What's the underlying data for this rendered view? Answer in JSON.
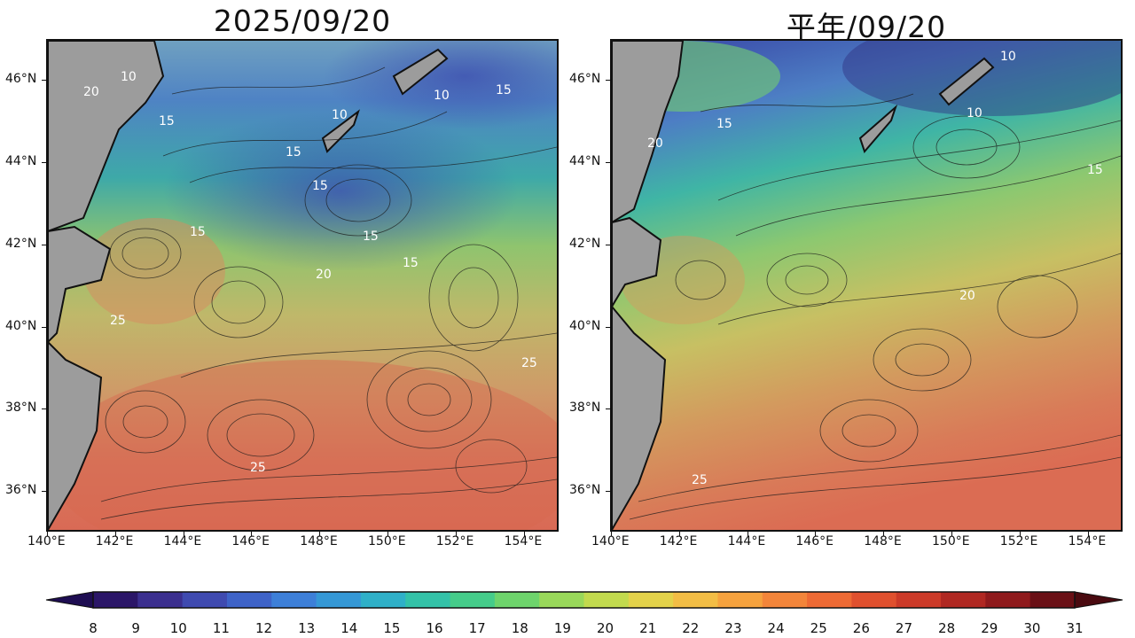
{
  "panels": [
    {
      "title": "2025/09/20"
    },
    {
      "title": "平年/09/20"
    }
  ],
  "lat_labels": [
    "46°N",
    "44°N",
    "42°N",
    "40°N",
    "38°N",
    "36°N"
  ],
  "lon_labels": [
    "140°E",
    "142°E",
    "144°E",
    "146°E",
    "148°E",
    "150°E",
    "152°E",
    "154°E"
  ],
  "colorbar": {
    "values": [
      "8",
      "9",
      "10",
      "11",
      "12",
      "13",
      "14",
      "15",
      "16",
      "17",
      "18",
      "19",
      "20",
      "21",
      "22",
      "23",
      "24",
      "25",
      "26",
      "27",
      "28",
      "29",
      "30",
      "31"
    ],
    "colors": [
      "#2b1668",
      "#3b2f8f",
      "#3f4ab0",
      "#3e63c8",
      "#3d7fd8",
      "#3598d6",
      "#2fb0c8",
      "#33c2a8",
      "#45cc8a",
      "#6ed46c",
      "#99d85a",
      "#c2da4e",
      "#e3d24a",
      "#f2bd45",
      "#f5a23e",
      "#f3853a",
      "#ee6a34",
      "#e0502e",
      "#cc3a28",
      "#b02822",
      "#8f1a1c",
      "#6a1016"
    ],
    "under_color": "#1e0d52",
    "over_color": "#4a0a10"
  },
  "contour_labels": {
    "left": [
      "20",
      "10",
      "15",
      "10",
      "10",
      "15",
      "15",
      "15",
      "15",
      "15",
      "20",
      "15",
      "25",
      "25",
      "25"
    ],
    "right": [
      "15",
      "10",
      "10",
      "20",
      "15",
      "20",
      "25"
    ]
  }
}
